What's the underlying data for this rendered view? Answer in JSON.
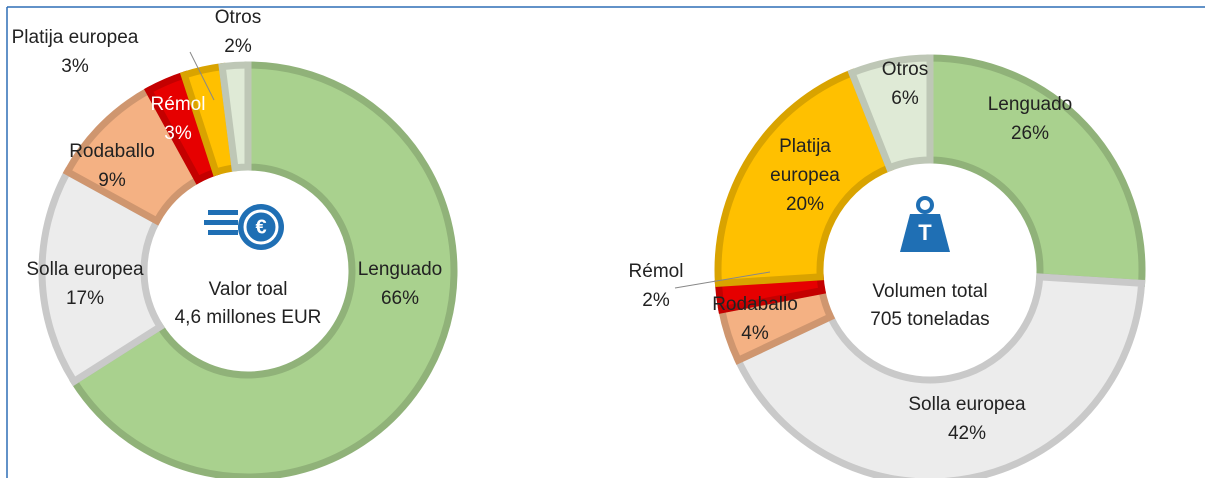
{
  "chart_data": [
    {
      "type": "donut",
      "annotations": [
        "Valor toal",
        "4,6 millones EUR"
      ],
      "categories": [
        "Lenguado",
        "Solla europea",
        "Rodaballo",
        "Rémol",
        "Platija europea",
        "Otros"
      ],
      "values": [
        66,
        17,
        9,
        3,
        3,
        2
      ],
      "value_labels": [
        "66%",
        "17%",
        "9%",
        "3%",
        "3%",
        "2%"
      ],
      "colors": [
        "#a9d18e",
        "#ececec",
        "#f4b183",
        "#e60000",
        "#ffc000",
        "#dfead6"
      ]
    },
    {
      "type": "donut",
      "annotations": [
        "Volumen total",
        "705 toneladas"
      ],
      "categories": [
        "Lenguado",
        "Solla europea",
        "Rodaballo",
        "Rémol",
        "Platija europea",
        "Otros"
      ],
      "values": [
        26,
        42,
        4,
        2,
        20,
        6
      ],
      "value_labels": [
        "26%",
        "42%",
        "4%",
        "2%",
        "20%",
        "6%"
      ],
      "colors": [
        "#a9d18e",
        "#ececec",
        "#f4b183",
        "#e60000",
        "#ffc000",
        "#dfead6"
      ]
    }
  ]
}
